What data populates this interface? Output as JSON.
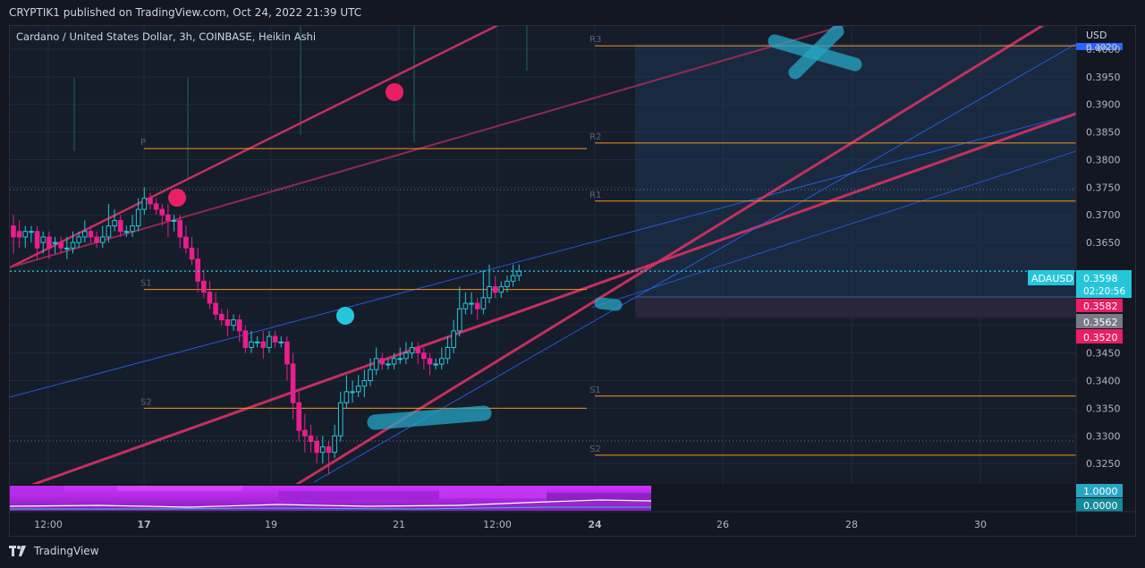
{
  "header": {
    "published_text": "CRYPTIK1 published on TradingView.com, Oct 24, 2022 21:39 UTC"
  },
  "legend": {
    "symbol_title": "Cardano / United States Dollar, 3h, COINBASE, Heikin Ashi"
  },
  "price_axis": {
    "currency": "USD",
    "ticks": [
      "0.4000",
      "0.3950",
      "0.3900",
      "0.3850",
      "0.3800",
      "0.3750",
      "0.3700",
      "0.3650",
      "0.3450",
      "0.3400",
      "0.3350",
      "0.3300",
      "0.3250"
    ],
    "top_cut_label": "0.4020"
  },
  "badges": {
    "symbol": "ADAUSD",
    "last_price": "0.3598",
    "countdown": "02:20:56",
    "b1": "0.3582",
    "b2": "0.3562",
    "b3": "0.3520",
    "ind_top": "1.0000",
    "ind_bottom": "0.0000"
  },
  "time_axis": {
    "labels": [
      "12:00",
      "17",
      "19",
      "21",
      "12:00",
      "24",
      "26",
      "28",
      "30"
    ]
  },
  "pivot_labels": {
    "left": [
      "P",
      "S1",
      "S2"
    ],
    "right": [
      "R3",
      "R2",
      "R1",
      "S1",
      "S2"
    ]
  },
  "footer": {
    "brand": "TradingView"
  },
  "colors": {
    "background": "#151d2b",
    "bull_candle": "#26c6da",
    "bear_candle": "#e91e8c",
    "pivot_line": "#f7931a",
    "trend_magenta": "#d63164",
    "trend_blue": "#2962ff",
    "marker_teal": "#26a6c4",
    "marker_pink": "#e91e63"
  },
  "chart_data": {
    "type": "candlestick",
    "title": "Cardano / United States Dollar, 3h, COINBASE, Heikin Ashi",
    "y_unit": "USD",
    "ylim": [
      0.3213,
      0.4042
    ],
    "x_ticks": [
      "12:00",
      "17",
      "19",
      "21",
      "12:00",
      "24",
      "26",
      "28",
      "30"
    ],
    "last_price": 0.3598,
    "pivots_previous": {
      "P": 0.382,
      "S1": 0.3565,
      "S2": 0.335
    },
    "pivots_current": {
      "R3": 0.4006,
      "R2": 0.383,
      "R1": 0.3725,
      "S1": 0.3372,
      "S2": 0.3265
    },
    "candles": [
      [
        0.368,
        0.366,
        0.37,
        0.363
      ],
      [
        0.367,
        0.366,
        0.369,
        0.364
      ],
      [
        0.366,
        0.367,
        0.368,
        0.364
      ],
      [
        0.367,
        0.367,
        0.368,
        0.365
      ],
      [
        0.367,
        0.364,
        0.368,
        0.362
      ],
      [
        0.365,
        0.366,
        0.367,
        0.363
      ],
      [
        0.366,
        0.364,
        0.367,
        0.362
      ],
      [
        0.365,
        0.365,
        0.366,
        0.363
      ],
      [
        0.365,
        0.364,
        0.366,
        0.363
      ],
      [
        0.364,
        0.364,
        0.366,
        0.362
      ],
      [
        0.364,
        0.365,
        0.367,
        0.363
      ],
      [
        0.365,
        0.366,
        0.367,
        0.364
      ],
      [
        0.366,
        0.367,
        0.369,
        0.365
      ],
      [
        0.367,
        0.366,
        0.368,
        0.365
      ],
      [
        0.366,
        0.365,
        0.367,
        0.364
      ],
      [
        0.365,
        0.366,
        0.368,
        0.364
      ],
      [
        0.366,
        0.368,
        0.372,
        0.365
      ],
      [
        0.368,
        0.369,
        0.371,
        0.367
      ],
      [
        0.369,
        0.367,
        0.37,
        0.366
      ],
      [
        0.367,
        0.367,
        0.368,
        0.366
      ],
      [
        0.367,
        0.368,
        0.37,
        0.366
      ],
      [
        0.368,
        0.371,
        0.373,
        0.367
      ],
      [
        0.371,
        0.373,
        0.375,
        0.37
      ],
      [
        0.373,
        0.372,
        0.374,
        0.371
      ],
      [
        0.372,
        0.371,
        0.373,
        0.37
      ],
      [
        0.371,
        0.37,
        0.372,
        0.368
      ],
      [
        0.37,
        0.369,
        0.372,
        0.366
      ],
      [
        0.369,
        0.369,
        0.37,
        0.367
      ],
      [
        0.369,
        0.366,
        0.37,
        0.364
      ],
      [
        0.366,
        0.364,
        0.368,
        0.363
      ],
      [
        0.364,
        0.362,
        0.366,
        0.361
      ],
      [
        0.362,
        0.358,
        0.364,
        0.356
      ],
      [
        0.358,
        0.356,
        0.36,
        0.355
      ],
      [
        0.356,
        0.354,
        0.358,
        0.353
      ],
      [
        0.354,
        0.352,
        0.356,
        0.351
      ],
      [
        0.352,
        0.351,
        0.353,
        0.35
      ],
      [
        0.351,
        0.35,
        0.353,
        0.348
      ],
      [
        0.35,
        0.351,
        0.352,
        0.349
      ],
      [
        0.351,
        0.349,
        0.352,
        0.347
      ],
      [
        0.349,
        0.346,
        0.35,
        0.345
      ],
      [
        0.346,
        0.347,
        0.349,
        0.345
      ],
      [
        0.347,
        0.347,
        0.348,
        0.346
      ],
      [
        0.347,
        0.346,
        0.349,
        0.344
      ],
      [
        0.346,
        0.348,
        0.349,
        0.345
      ],
      [
        0.348,
        0.347,
        0.349,
        0.346
      ],
      [
        0.347,
        0.347,
        0.348,
        0.346
      ],
      [
        0.347,
        0.343,
        0.348,
        0.34
      ],
      [
        0.343,
        0.336,
        0.345,
        0.333
      ],
      [
        0.336,
        0.331,
        0.338,
        0.329
      ],
      [
        0.331,
        0.33,
        0.334,
        0.327
      ],
      [
        0.33,
        0.329,
        0.332,
        0.327
      ],
      [
        0.329,
        0.327,
        0.33,
        0.325
      ],
      [
        0.327,
        0.328,
        0.33,
        0.325
      ],
      [
        0.328,
        0.327,
        0.329,
        0.323
      ],
      [
        0.327,
        0.33,
        0.332,
        0.326
      ],
      [
        0.33,
        0.336,
        0.338,
        0.329
      ],
      [
        0.336,
        0.338,
        0.341,
        0.335
      ],
      [
        0.338,
        0.338,
        0.34,
        0.336
      ],
      [
        0.338,
        0.339,
        0.341,
        0.337
      ],
      [
        0.339,
        0.34,
        0.342,
        0.337
      ],
      [
        0.34,
        0.342,
        0.344,
        0.339
      ],
      [
        0.342,
        0.344,
        0.346,
        0.341
      ],
      [
        0.344,
        0.343,
        0.345,
        0.342
      ],
      [
        0.343,
        0.343,
        0.344,
        0.342
      ],
      [
        0.343,
        0.344,
        0.345,
        0.342
      ],
      [
        0.344,
        0.344,
        0.346,
        0.343
      ],
      [
        0.344,
        0.345,
        0.347,
        0.343
      ],
      [
        0.345,
        0.346,
        0.347,
        0.344
      ],
      [
        0.346,
        0.345,
        0.347,
        0.343
      ],
      [
        0.345,
        0.344,
        0.346,
        0.342
      ],
      [
        0.344,
        0.343,
        0.345,
        0.341
      ],
      [
        0.343,
        0.343,
        0.344,
        0.342
      ],
      [
        0.343,
        0.344,
        0.346,
        0.342
      ],
      [
        0.344,
        0.346,
        0.348,
        0.343
      ],
      [
        0.346,
        0.349,
        0.351,
        0.345
      ],
      [
        0.349,
        0.353,
        0.357,
        0.348
      ],
      [
        0.353,
        0.354,
        0.356,
        0.352
      ],
      [
        0.354,
        0.354,
        0.356,
        0.352
      ],
      [
        0.354,
        0.353,
        0.355,
        0.351
      ],
      [
        0.353,
        0.355,
        0.36,
        0.352
      ],
      [
        0.355,
        0.357,
        0.361,
        0.354
      ],
      [
        0.357,
        0.356,
        0.359,
        0.355
      ],
      [
        0.356,
        0.357,
        0.358,
        0.355
      ],
      [
        0.357,
        0.358,
        0.359,
        0.356
      ],
      [
        0.358,
        0.359,
        0.361,
        0.357
      ],
      [
        0.359,
        0.3598,
        0.361,
        0.358
      ]
    ]
  }
}
